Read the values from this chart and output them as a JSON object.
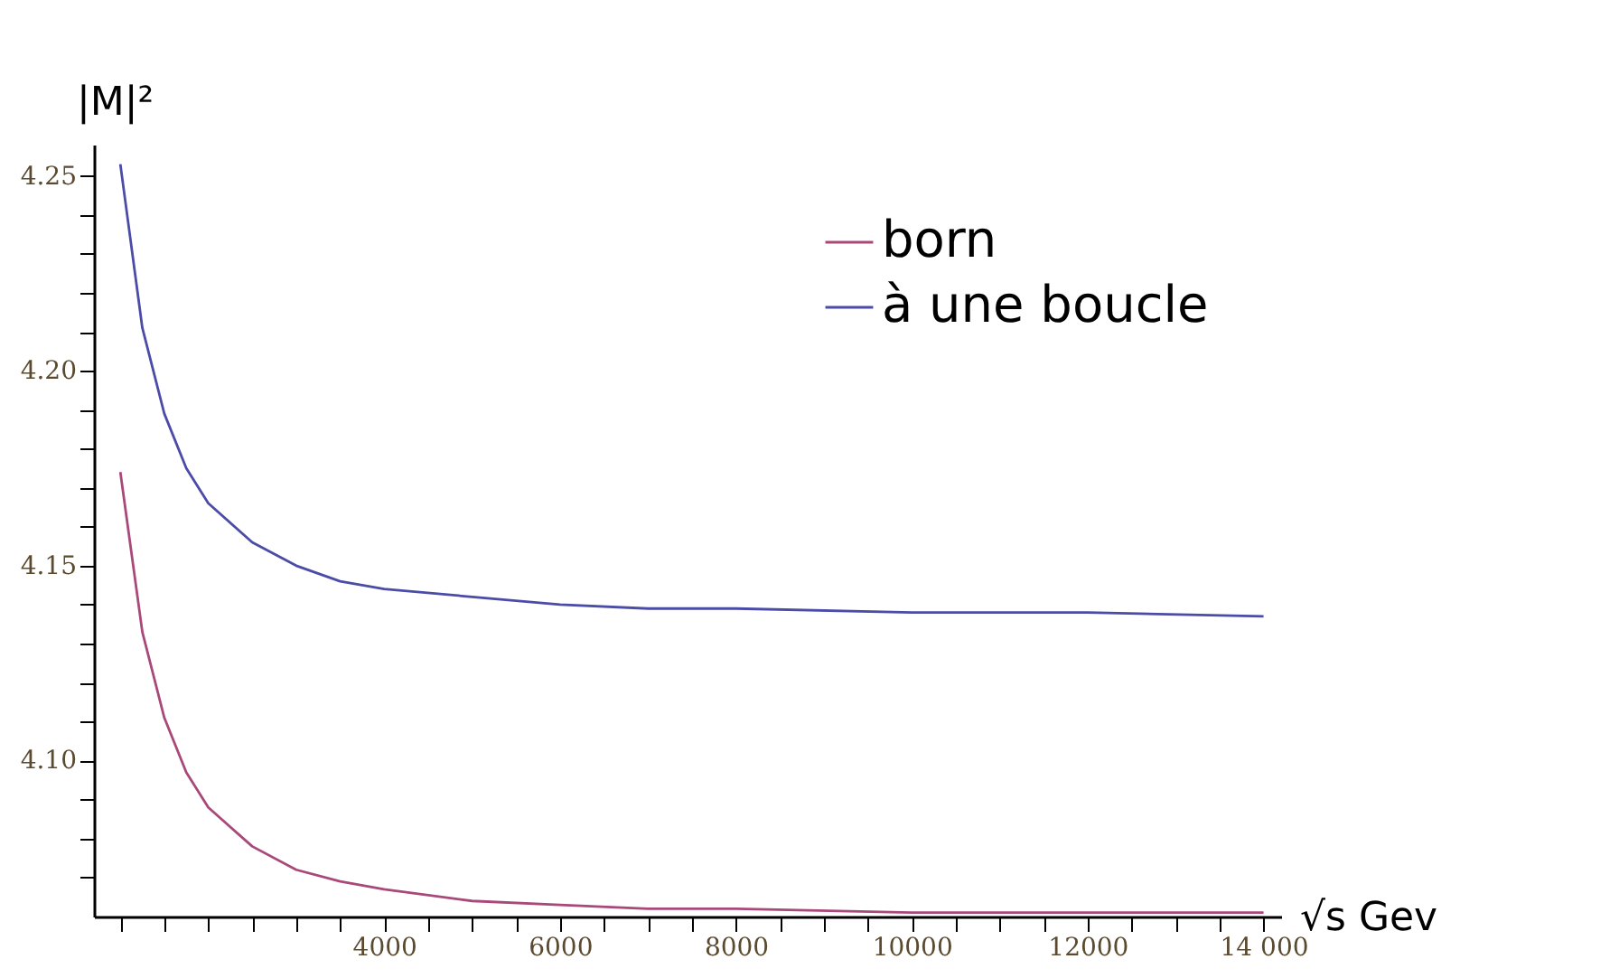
{
  "chart_data": {
    "type": "line",
    "xlabel": "√s Gev",
    "ylabel": "|M|²",
    "legend": "top right",
    "grid": false,
    "marker": "none",
    "line_style": "solid",
    "xlim": [
      700,
      14200
    ],
    "ylim": [
      4.06,
      4.258
    ],
    "xticks": [
      {
        "value": 1000,
        "label": null
      },
      {
        "value": 1500,
        "label": null
      },
      {
        "value": 2000,
        "label": null
      },
      {
        "value": 2500,
        "label": null
      },
      {
        "value": 3000,
        "label": null
      },
      {
        "value": 3500,
        "label": null
      },
      4000,
      {
        "value": 4500,
        "label": null
      },
      {
        "value": 5000,
        "label": null
      },
      {
        "value": 5500,
        "label": null
      },
      6000,
      {
        "value": 6500,
        "label": null
      },
      {
        "value": 7000,
        "label": null
      },
      {
        "value": 7500,
        "label": null
      },
      8000,
      {
        "value": 8500,
        "label": null
      },
      {
        "value": 9000,
        "label": null
      },
      {
        "value": 9500,
        "label": null
      },
      10000,
      {
        "value": 10500,
        "label": null
      },
      {
        "value": 11000,
        "label": null
      },
      {
        "value": 11500,
        "label": null
      },
      12000,
      {
        "value": 12500,
        "label": null
      },
      {
        "value": 13000,
        "label": null
      },
      {
        "value": 13500,
        "label": null
      },
      {
        "value": 14000,
        "label": "14 000"
      }
    ],
    "yticks": [
      {
        "value": 4.07,
        "label": null
      },
      {
        "value": 4.08,
        "label": null
      },
      {
        "value": 4.09,
        "label": null
      },
      {
        "value": 4.1,
        "label": "4.10"
      },
      {
        "value": 4.11,
        "label": null
      },
      {
        "value": 4.12,
        "label": null
      },
      {
        "value": 4.13,
        "label": null
      },
      {
        "value": 4.14,
        "label": null
      },
      {
        "value": 4.15,
        "label": "4.15"
      },
      {
        "value": 4.16,
        "label": null
      },
      {
        "value": 4.17,
        "label": null
      },
      {
        "value": 4.18,
        "label": null
      },
      {
        "value": 4.19,
        "label": null
      },
      {
        "value": 4.2,
        "label": "4.20"
      },
      {
        "value": 4.21,
        "label": null
      },
      {
        "value": 4.22,
        "label": null
      },
      {
        "value": 4.23,
        "label": null
      },
      {
        "value": 4.24,
        "label": null
      },
      {
        "value": 4.25,
        "label": "4.25"
      }
    ],
    "x": [
      1000,
      1250,
      1500,
      1750,
      2000,
      2500,
      3000,
      3500,
      4000,
      5000,
      6000,
      7000,
      8000,
      10000,
      12000,
      14000
    ],
    "series": [
      {
        "name": "born",
        "color": "#a8497a",
        "values": [
          4.174,
          4.133,
          4.111,
          4.097,
          4.088,
          4.078,
          4.072,
          4.069,
          4.067,
          4.064,
          4.063,
          4.062,
          4.062,
          4.061,
          4.061,
          4.061
        ]
      },
      {
        "name": "à une boucle",
        "color": "#4b4ba8",
        "values": [
          4.253,
          4.211,
          4.189,
          4.175,
          4.166,
          4.156,
          4.15,
          4.146,
          4.144,
          4.142,
          4.14,
          4.139,
          4.139,
          4.138,
          4.138,
          4.137
        ]
      }
    ]
  }
}
